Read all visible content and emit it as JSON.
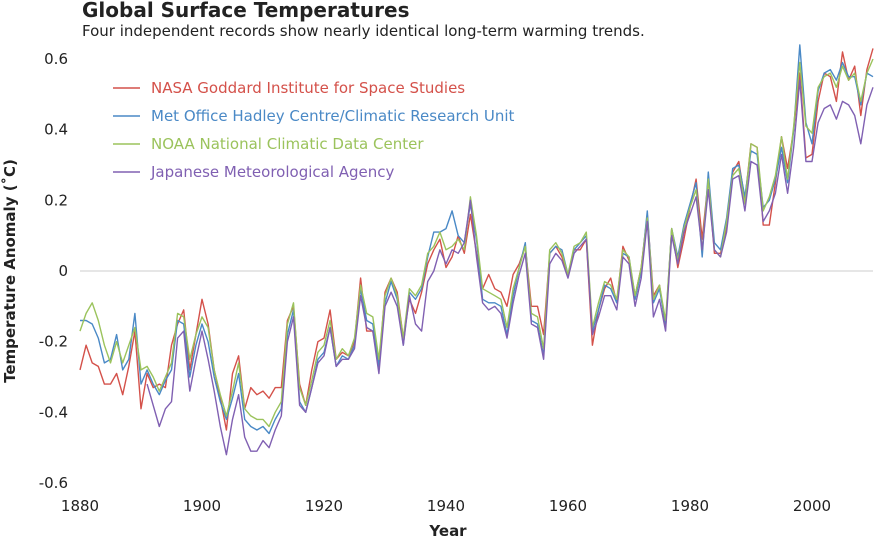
{
  "chart_data": {
    "type": "line",
    "title": "Global Surface Temperatures",
    "subtitle": "Four independent records show nearly identical long-term warming trends.",
    "xlabel": "Year",
    "ylabel": "Temperature Anomaly (˚C)",
    "xlim": [
      1880,
      2010
    ],
    "ylim": [
      -0.6,
      0.65
    ],
    "xticks": [
      "1880",
      "1900",
      "1920",
      "1940",
      "1960",
      "1980",
      "2000"
    ],
    "yticks": [
      "0.6",
      "0.4",
      "0.2",
      "0",
      "-0.2",
      "-0.4",
      "-0.6"
    ],
    "zero_line": true,
    "legend_position": "top-left",
    "start_year": 1880,
    "series": [
      {
        "name": "NASA Goddard Institute for Space Studies",
        "color": "#d4514a",
        "values": [
          -0.28,
          -0.21,
          -0.26,
          -0.27,
          -0.32,
          -0.32,
          -0.29,
          -0.35,
          -0.27,
          -0.17,
          -0.39,
          -0.29,
          -0.33,
          -0.32,
          -0.33,
          -0.21,
          -0.15,
          -0.11,
          -0.28,
          -0.18,
          -0.08,
          -0.15,
          -0.28,
          -0.36,
          -0.45,
          -0.29,
          -0.24,
          -0.39,
          -0.33,
          -0.35,
          -0.34,
          -0.36,
          -0.33,
          -0.33,
          -0.14,
          -0.1,
          -0.32,
          -0.38,
          -0.28,
          -0.2,
          -0.19,
          -0.11,
          -0.25,
          -0.23,
          -0.24,
          -0.2,
          -0.02,
          -0.17,
          -0.17,
          -0.27,
          -0.06,
          -0.02,
          -0.06,
          -0.19,
          -0.08,
          -0.12,
          -0.06,
          0.02,
          0.06,
          0.09,
          0.01,
          0.04,
          0.1,
          0.05,
          0.16,
          0.05,
          -0.05,
          -0.01,
          -0.05,
          -0.06,
          -0.1,
          -0.01,
          0.02,
          0.07,
          -0.1,
          -0.1,
          -0.18,
          0.05,
          0.07,
          0.04,
          -0.01,
          0.06,
          0.06,
          0.09,
          -0.21,
          -0.11,
          -0.05,
          -0.02,
          -0.09,
          0.07,
          0.03,
          -0.07,
          0.01,
          0.16,
          -0.07,
          -0.04,
          -0.16,
          0.12,
          0.01,
          0.09,
          0.18,
          0.26,
          0.09,
          0.26,
          0.05,
          0.05,
          0.12,
          0.28,
          0.31,
          0.2,
          0.36,
          0.35,
          0.13,
          0.13,
          0.25,
          0.38,
          0.29,
          0.4,
          0.56,
          0.32,
          0.33,
          0.48,
          0.56,
          0.55,
          0.48,
          0.62,
          0.54,
          0.58,
          0.44,
          0.57,
          0.63
        ]
      },
      {
        "name": "Met Office Hadley Centre/Climatic Research Unit",
        "color": "#4a89c6",
        "values": [
          -0.14,
          -0.14,
          -0.15,
          -0.19,
          -0.26,
          -0.25,
          -0.18,
          -0.28,
          -0.25,
          -0.12,
          -0.32,
          -0.28,
          -0.32,
          -0.35,
          -0.31,
          -0.28,
          -0.14,
          -0.15,
          -0.3,
          -0.21,
          -0.15,
          -0.2,
          -0.3,
          -0.37,
          -0.42,
          -0.36,
          -0.29,
          -0.42,
          -0.44,
          -0.45,
          -0.44,
          -0.46,
          -0.42,
          -0.39,
          -0.18,
          -0.11,
          -0.37,
          -0.4,
          -0.33,
          -0.25,
          -0.23,
          -0.16,
          -0.27,
          -0.24,
          -0.25,
          -0.21,
          -0.05,
          -0.14,
          -0.15,
          -0.27,
          -0.09,
          -0.03,
          -0.08,
          -0.21,
          -0.06,
          -0.08,
          -0.05,
          0.04,
          0.11,
          0.11,
          0.12,
          0.17,
          0.1,
          0.08,
          0.19,
          0.09,
          -0.08,
          -0.09,
          -0.09,
          -0.1,
          -0.18,
          -0.07,
          0.01,
          0.08,
          -0.14,
          -0.15,
          -0.24,
          0.05,
          0.07,
          0.06,
          -0.01,
          0.06,
          0.08,
          0.1,
          -0.17,
          -0.11,
          -0.04,
          -0.05,
          -0.09,
          0.05,
          0.04,
          -0.08,
          0.0,
          0.17,
          -0.09,
          -0.05,
          -0.15,
          0.12,
          0.04,
          0.13,
          0.19,
          0.25,
          0.04,
          0.28,
          0.08,
          0.06,
          0.15,
          0.29,
          0.3,
          0.21,
          0.34,
          0.33,
          0.18,
          0.2,
          0.26,
          0.35,
          0.25,
          0.4,
          0.64,
          0.42,
          0.36,
          0.51,
          0.56,
          0.57,
          0.54,
          0.59,
          0.55,
          0.55,
          0.47,
          0.56,
          0.55
        ]
      },
      {
        "name": "NOAA National Climatic Data Center",
        "color": "#9bc35c",
        "values": [
          -0.17,
          -0.12,
          -0.09,
          -0.14,
          -0.21,
          -0.26,
          -0.2,
          -0.26,
          -0.21,
          -0.16,
          -0.28,
          -0.27,
          -0.3,
          -0.34,
          -0.3,
          -0.26,
          -0.12,
          -0.13,
          -0.25,
          -0.18,
          -0.13,
          -0.16,
          -0.28,
          -0.35,
          -0.41,
          -0.34,
          -0.26,
          -0.39,
          -0.41,
          -0.42,
          -0.42,
          -0.44,
          -0.4,
          -0.37,
          -0.15,
          -0.09,
          -0.33,
          -0.38,
          -0.31,
          -0.23,
          -0.21,
          -0.14,
          -0.25,
          -0.22,
          -0.24,
          -0.19,
          -0.04,
          -0.12,
          -0.13,
          -0.25,
          -0.07,
          -0.02,
          -0.07,
          -0.19,
          -0.05,
          -0.07,
          -0.04,
          0.05,
          0.07,
          0.11,
          0.06,
          0.07,
          0.09,
          0.06,
          0.21,
          0.1,
          -0.05,
          -0.06,
          -0.07,
          -0.08,
          -0.16,
          -0.05,
          0.01,
          0.07,
          -0.12,
          -0.13,
          -0.22,
          0.06,
          0.08,
          0.05,
          -0.01,
          0.07,
          0.08,
          0.11,
          -0.16,
          -0.09,
          -0.03,
          -0.04,
          -0.08,
          0.06,
          0.04,
          -0.07,
          0.01,
          0.15,
          -0.08,
          -0.04,
          -0.14,
          0.12,
          0.03,
          0.12,
          0.18,
          0.23,
          0.06,
          0.26,
          0.06,
          0.04,
          0.14,
          0.27,
          0.29,
          0.19,
          0.36,
          0.35,
          0.17,
          0.21,
          0.27,
          0.38,
          0.26,
          0.41,
          0.59,
          0.41,
          0.39,
          0.52,
          0.55,
          0.56,
          0.52,
          0.58,
          0.54,
          0.56,
          0.48,
          0.56,
          0.6
        ]
      },
      {
        "name": "Japanese Meteorological Agency",
        "color": "#8060b2",
        "values": [
          null,
          null,
          null,
          null,
          null,
          null,
          null,
          null,
          null,
          null,
          null,
          -0.32,
          -0.38,
          -0.44,
          -0.39,
          -0.37,
          -0.19,
          -0.17,
          -0.34,
          -0.25,
          -0.17,
          -0.25,
          -0.34,
          -0.44,
          -0.52,
          -0.42,
          -0.35,
          -0.47,
          -0.51,
          -0.51,
          -0.48,
          -0.5,
          -0.45,
          -0.41,
          -0.2,
          -0.13,
          -0.38,
          -0.4,
          -0.33,
          -0.26,
          -0.24,
          -0.16,
          -0.27,
          -0.25,
          -0.25,
          -0.22,
          -0.07,
          -0.16,
          -0.17,
          -0.29,
          -0.1,
          -0.06,
          -0.1,
          -0.21,
          -0.07,
          -0.15,
          -0.17,
          -0.03,
          0.0,
          0.06,
          0.02,
          0.06,
          0.05,
          0.08,
          0.2,
          0.04,
          -0.09,
          -0.11,
          -0.1,
          -0.12,
          -0.19,
          -0.09,
          -0.01,
          0.05,
          -0.15,
          -0.16,
          -0.25,
          0.02,
          0.05,
          0.03,
          -0.02,
          0.05,
          0.07,
          0.09,
          -0.18,
          -0.13,
          -0.07,
          -0.07,
          -0.11,
          0.04,
          0.02,
          -0.1,
          -0.02,
          0.14,
          -0.13,
          -0.08,
          -0.17,
          0.1,
          0.02,
          0.11,
          0.16,
          0.21,
          0.06,
          0.23,
          0.06,
          0.04,
          0.11,
          0.26,
          0.27,
          0.17,
          0.31,
          0.3,
          0.14,
          0.17,
          0.22,
          0.33,
          0.22,
          0.35,
          0.54,
          0.31,
          0.31,
          0.42,
          0.46,
          0.47,
          0.43,
          0.48,
          0.47,
          0.44,
          0.36,
          0.47,
          0.52
        ]
      }
    ]
  }
}
